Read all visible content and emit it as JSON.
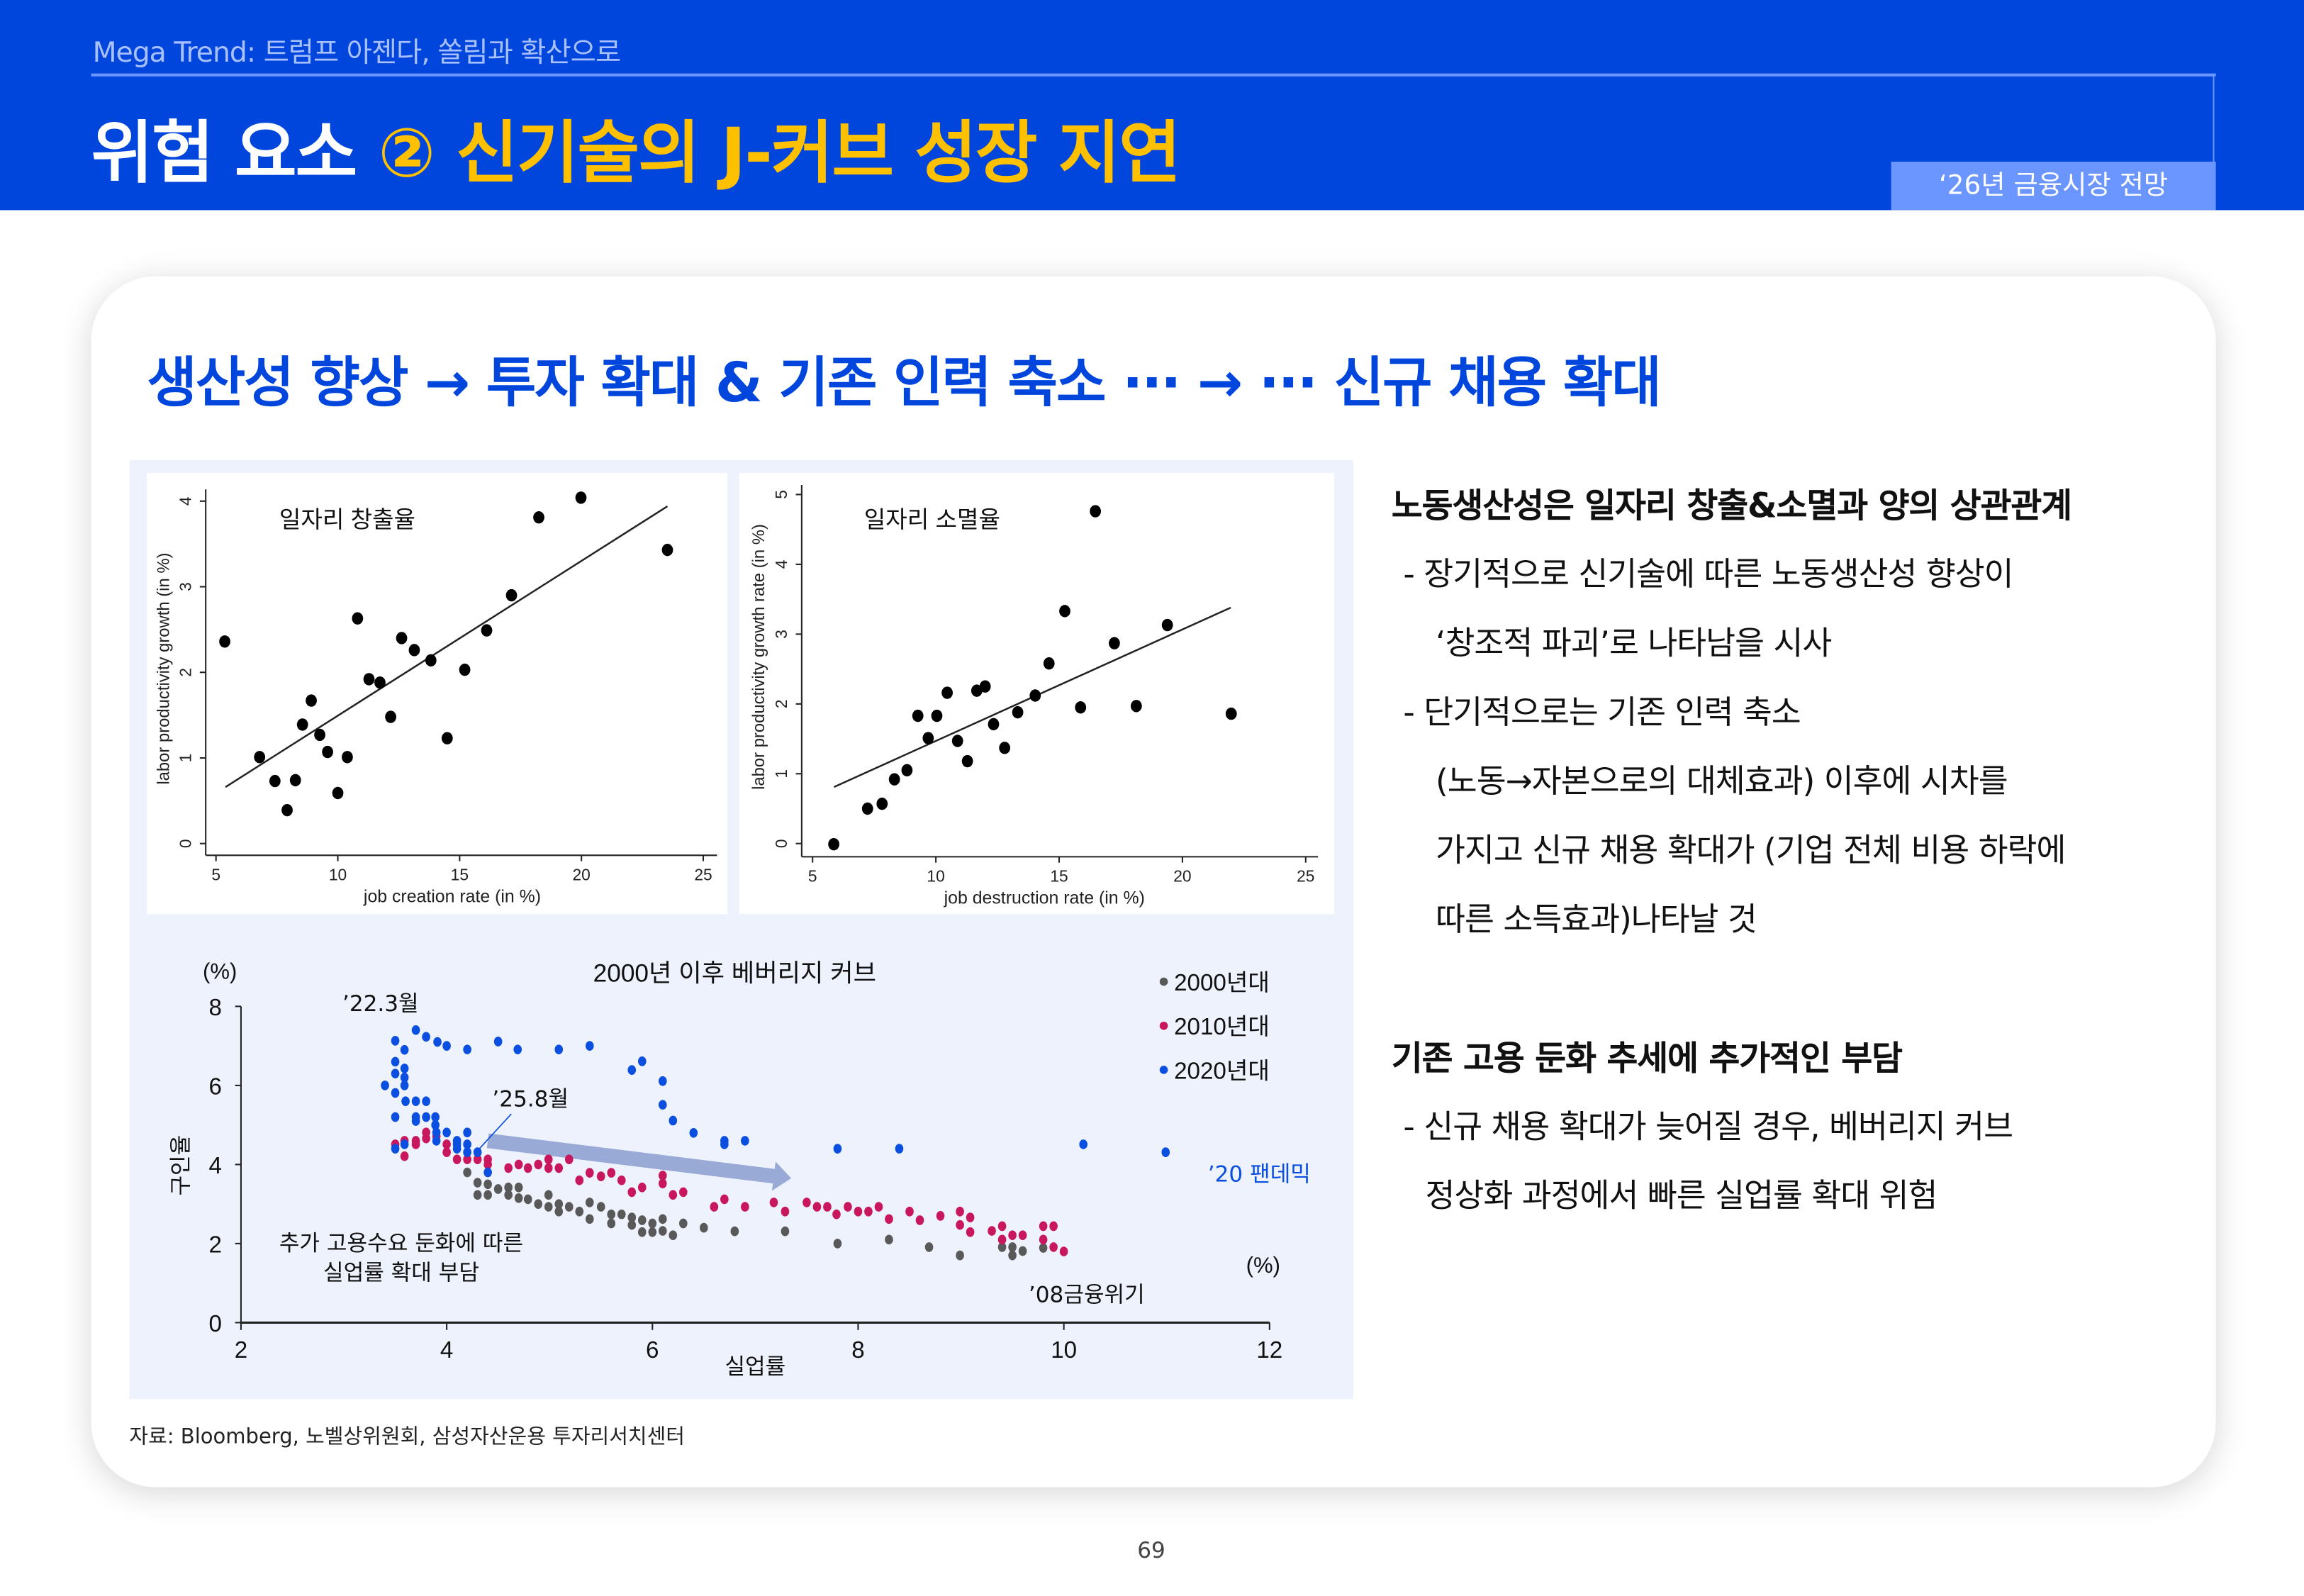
{
  "header": {
    "subtitle": "Mega Trend: 트럼프 아젠다, 쏠림과 확산으로",
    "title_white": "위험 요소 ",
    "title_yellow": "② 신기술의 J-커브 성장 지연",
    "badge": "‘26년 금융시장 전망",
    "colors": {
      "background": "#0046DC",
      "accent": "#FFC000",
      "badge": "#6B95FF"
    }
  },
  "headline": "생산성 향상 → 투자 확대 & 기존 인력 축소 ··· → ··· 신규 채용 확대",
  "chart_data": [
    {
      "type": "scatter",
      "title": "일자리 창출율",
      "xlabel": "job creation rate (in %)",
      "ylabel": "labor productivity growth (in %)",
      "xticks": [
        5,
        10,
        15,
        20,
        25
      ],
      "yticks": [
        0,
        1,
        2,
        3,
        4
      ],
      "points": [
        [
          5.36,
          2.36
        ],
        [
          6.79,
          1.01
        ],
        [
          7.42,
          0.73
        ],
        [
          7.92,
          0.39
        ],
        [
          8.26,
          0.74
        ],
        [
          8.55,
          1.39
        ],
        [
          8.91,
          1.67
        ],
        [
          9.26,
          1.27
        ],
        [
          9.58,
          1.07
        ],
        [
          10.0,
          0.59
        ],
        [
          10.39,
          1.01
        ],
        [
          10.81,
          2.63
        ],
        [
          11.28,
          1.92
        ],
        [
          11.73,
          1.88
        ],
        [
          12.17,
          1.48
        ],
        [
          12.62,
          2.4
        ],
        [
          13.14,
          2.26
        ],
        [
          13.82,
          2.14
        ],
        [
          14.49,
          1.23
        ],
        [
          15.21,
          2.03
        ],
        [
          16.11,
          2.49
        ],
        [
          17.13,
          2.9
        ],
        [
          18.25,
          3.81
        ],
        [
          19.98,
          4.04
        ],
        [
          23.53,
          3.43
        ]
      ],
      "fit_line": [
        [
          5.39,
          0.66
        ],
        [
          23.53,
          3.94
        ]
      ]
    },
    {
      "type": "scatter",
      "title": "일자리 소멸율",
      "xlabel": "job destruction rate (in %)",
      "ylabel": "labor productivity growth rate (in %)",
      "xticks": [
        5,
        10,
        15,
        20,
        25
      ],
      "yticks": [
        0,
        1,
        2,
        3,
        4,
        5
      ],
      "points": [
        [
          5.86,
          -0.01
        ],
        [
          7.23,
          0.5
        ],
        [
          7.82,
          0.57
        ],
        [
          8.32,
          0.92
        ],
        [
          8.83,
          1.05
        ],
        [
          9.27,
          1.83
        ],
        [
          9.69,
          1.51
        ],
        [
          10.04,
          1.83
        ],
        [
          10.46,
          2.16
        ],
        [
          10.88,
          1.47
        ],
        [
          11.28,
          1.18
        ],
        [
          11.66,
          2.19
        ],
        [
          12.0,
          2.25
        ],
        [
          12.34,
          1.71
        ],
        [
          12.79,
          1.37
        ],
        [
          13.32,
          1.88
        ],
        [
          14.03,
          2.12
        ],
        [
          14.59,
          2.58
        ],
        [
          15.23,
          3.33
        ],
        [
          15.87,
          1.95
        ],
        [
          16.47,
          4.76
        ],
        [
          17.24,
          2.87
        ],
        [
          18.13,
          1.97
        ],
        [
          19.39,
          3.13
        ],
        [
          21.98,
          1.86
        ]
      ],
      "fit_line": [
        [
          5.87,
          0.81
        ],
        [
          21.96,
          3.38
        ]
      ]
    },
    {
      "type": "scatter",
      "title": "2000년 이후 베버리지 커브",
      "xlabel": "실업률",
      "ylabel": "구인율",
      "y_unit": "(%)",
      "x_unit": "(%)",
      "xticks": [
        2,
        4,
        6,
        8,
        10,
        12
      ],
      "yticks": [
        0,
        2,
        4,
        6,
        8
      ],
      "xlim": [
        2,
        12
      ],
      "ylim": [
        0,
        8
      ],
      "legend_position": "top-right",
      "series": [
        {
          "name": "2000년대",
          "color": "#595959",
          "points": [
            [
              4.2,
              3.8
            ],
            [
              4.3,
              3.54
            ],
            [
              4.3,
              3.23
            ],
            [
              4.4,
              3.5
            ],
            [
              4.4,
              3.23
            ],
            [
              4.5,
              3.38
            ],
            [
              4.6,
              3.42
            ],
            [
              4.6,
              3.23
            ],
            [
              4.7,
              3.42
            ],
            [
              4.7,
              3.15
            ],
            [
              4.79,
              3.12
            ],
            [
              4.89,
              3.0
            ],
            [
              4.99,
              3.23
            ],
            [
              4.99,
              2.93
            ],
            [
              5.09,
              3.0
            ],
            [
              5.09,
              2.81
            ],
            [
              5.19,
              2.93
            ],
            [
              5.29,
              2.81
            ],
            [
              5.39,
              3.04
            ],
            [
              5.39,
              2.62
            ],
            [
              5.5,
              2.93
            ],
            [
              5.6,
              2.74
            ],
            [
              5.6,
              2.51
            ],
            [
              5.7,
              2.74
            ],
            [
              5.8,
              2.66
            ],
            [
              5.8,
              2.47
            ],
            [
              5.9,
              2.59
            ],
            [
              5.9,
              2.29
            ],
            [
              6.0,
              2.51
            ],
            [
              6.0,
              2.29
            ],
            [
              6.1,
              2.62
            ],
            [
              6.1,
              2.32
            ],
            [
              6.2,
              2.21
            ],
            [
              6.3,
              2.51
            ],
            [
              6.5,
              2.4
            ],
            [
              6.8,
              2.31
            ],
            [
              7.29,
              2.31
            ],
            [
              7.8,
              2.0
            ],
            [
              8.3,
              2.1
            ],
            [
              8.69,
              1.91
            ],
            [
              8.99,
              1.7
            ],
            [
              9.4,
              1.91
            ],
            [
              9.5,
              1.7
            ],
            [
              9.5,
              1.91
            ],
            [
              9.6,
              1.81
            ],
            [
              9.8,
              1.89
            ]
          ]
        },
        {
          "name": "2010년대",
          "color": "#C8175D",
          "points": [
            [
              3.5,
              4.51
            ],
            [
              3.59,
              4.6
            ],
            [
              3.59,
              4.21
            ],
            [
              3.7,
              4.6
            ],
            [
              3.7,
              4.51
            ],
            [
              3.8,
              4.66
            ],
            [
              3.8,
              4.81
            ],
            [
              3.9,
              4.71
            ],
            [
              4.0,
              4.51
            ],
            [
              4.0,
              4.31
            ],
            [
              4.1,
              4.13
            ],
            [
              4.2,
              4.13
            ],
            [
              4.3,
              4.13
            ],
            [
              4.4,
              4.13
            ],
            [
              4.4,
              4.0
            ],
            [
              4.6,
              3.91
            ],
            [
              4.7,
              4.0
            ],
            [
              4.79,
              3.91
            ],
            [
              4.89,
              4.0
            ],
            [
              4.99,
              4.13
            ],
            [
              4.99,
              3.91
            ],
            [
              5.09,
              3.91
            ],
            [
              5.19,
              4.13
            ],
            [
              5.29,
              3.6
            ],
            [
              5.39,
              3.79
            ],
            [
              5.5,
              3.7
            ],
            [
              5.6,
              3.79
            ],
            [
              5.7,
              3.6
            ],
            [
              5.8,
              3.3
            ],
            [
              5.9,
              3.42
            ],
            [
              6.1,
              3.72
            ],
            [
              6.1,
              3.52
            ],
            [
              6.2,
              3.23
            ],
            [
              6.3,
              3.3
            ],
            [
              6.6,
              2.93
            ],
            [
              6.7,
              3.12
            ],
            [
              6.9,
              2.93
            ],
            [
              7.18,
              3.04
            ],
            [
              7.29,
              2.81
            ],
            [
              7.5,
              3.04
            ],
            [
              7.6,
              2.93
            ],
            [
              7.7,
              2.93
            ],
            [
              7.79,
              2.74
            ],
            [
              7.9,
              2.93
            ],
            [
              8.0,
              2.81
            ],
            [
              8.1,
              2.81
            ],
            [
              8.2,
              2.93
            ],
            [
              8.3,
              2.62
            ],
            [
              8.5,
              2.81
            ],
            [
              8.6,
              2.59
            ],
            [
              8.8,
              2.7
            ],
            [
              8.99,
              2.81
            ],
            [
              8.99,
              2.47
            ],
            [
              9.09,
              2.66
            ],
            [
              9.09,
              2.29
            ],
            [
              9.3,
              2.32
            ],
            [
              9.4,
              2.44
            ],
            [
              9.4,
              2.1
            ],
            [
              9.5,
              2.21
            ],
            [
              9.6,
              2.21
            ],
            [
              9.8,
              2.44
            ],
            [
              9.8,
              2.1
            ],
            [
              9.9,
              2.44
            ],
            [
              9.9,
              1.91
            ],
            [
              10.0,
              1.8
            ]
          ]
        },
        {
          "name": "2020년대",
          "color": "#0A4FE0",
          "points": [
            [
              3.5,
              7.13
            ],
            [
              3.59,
              6.9
            ],
            [
              3.7,
              7.4
            ],
            [
              3.8,
              7.23
            ],
            [
              3.91,
              7.1
            ],
            [
              4.0,
              7.0
            ],
            [
              4.2,
              6.91
            ],
            [
              4.5,
              7.11
            ],
            [
              4.69,
              6.91
            ],
            [
              5.09,
              6.91
            ],
            [
              5.39,
              7.0
            ],
            [
              5.8,
              6.39
            ],
            [
              5.9,
              6.61
            ],
            [
              6.1,
              6.11
            ],
            [
              6.1,
              5.51
            ],
            [
              6.2,
              5.11
            ],
            [
              6.4,
              4.8
            ],
            [
              6.7,
              4.6
            ],
            [
              6.7,
              4.51
            ],
            [
              6.9,
              4.6
            ],
            [
              7.8,
              4.4
            ],
            [
              8.4,
              4.4
            ],
            [
              10.19,
              4.51
            ],
            [
              10.99,
              4.31
            ],
            [
              3.5,
              6.6
            ],
            [
              3.5,
              6.3
            ],
            [
              3.59,
              6.43
            ],
            [
              3.59,
              6.2
            ],
            [
              3.4,
              6.0
            ],
            [
              3.5,
              5.81
            ],
            [
              3.59,
              6.0
            ],
            [
              3.6,
              5.6
            ],
            [
              3.7,
              5.6
            ],
            [
              3.8,
              5.6
            ],
            [
              3.5,
              5.2
            ],
            [
              3.7,
              5.2
            ],
            [
              3.8,
              5.2
            ],
            [
              3.89,
              5.2
            ],
            [
              3.7,
              5.1
            ],
            [
              3.89,
              5.0
            ],
            [
              3.9,
              4.81
            ],
            [
              4.0,
              4.81
            ],
            [
              3.9,
              4.6
            ],
            [
              4.1,
              4.6
            ],
            [
              4.2,
              4.81
            ],
            [
              4.1,
              4.51
            ],
            [
              4.2,
              4.51
            ],
            [
              4.1,
              4.4
            ],
            [
              4.2,
              4.31
            ],
            [
              4.3,
              4.31
            ],
            [
              3.5,
              4.4
            ],
            [
              3.59,
              4.51
            ],
            [
              4.4,
              3.8
            ]
          ]
        }
      ],
      "trend_arrow": {
        "from": [
          4.4,
          4.6
        ],
        "to": [
          7.35,
          3.65
        ],
        "color": "#9AAAD6"
      },
      "annotations": {
        "mar22": "’22.3월",
        "aug25": "’25.8월",
        "pandemic": "’20 팬데믹",
        "gfc": "’08금융위기",
        "burden_1": "추가 고용수요 둔화에 따른",
        "burden_2": "실업률 확대 부담"
      }
    }
  ],
  "right": {
    "heading1": "노동생산성은 일자리 창출&소멸과 양의 상관관계",
    "lines1": [
      "- 장기적으로 신기술에 따른 노동생산성 향상이",
      "‘창조적 파괴’로 나타남을 시사",
      "- 단기적으로는 기존 인력 축소",
      "(노동→자본으로의 대체효과) 이후에 시차를",
      "가지고 신규 채용 확대가 (기업 전체 비용 하락에",
      "따른 소득효과)나타날 것"
    ],
    "heading2": "기존 고용 둔화 추세에 추가적인 부담",
    "lines2": [
      "- 신규 채용 확대가 늦어질 경우, 베버리지 커브",
      "정상화 과정에서 빠른 실업률 확대 위험"
    ]
  },
  "source": "자료: Bloomberg, 노벨상위원회, 삼성자산운용 투자리서치센터",
  "page_number": "69"
}
